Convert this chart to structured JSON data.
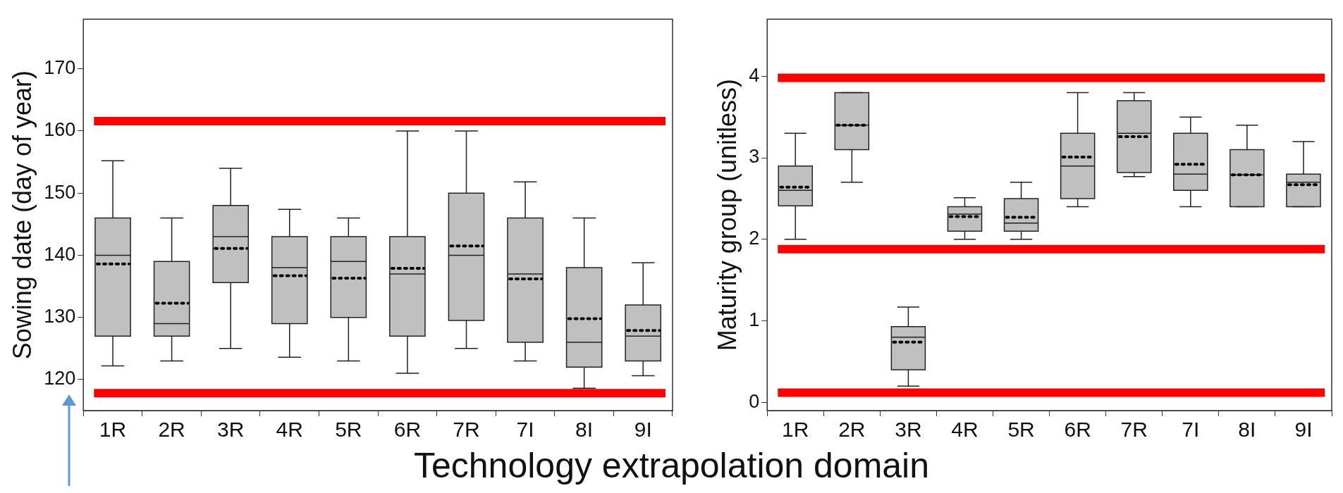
{
  "chart_data": [
    {
      "type": "box",
      "ylabel": "Sowing date (day of year)",
      "xlabel": "Technology extrapolation domain",
      "categories": [
        "1R",
        "2R",
        "3R",
        "4R",
        "5R",
        "6R",
        "7R",
        "7I",
        "8I",
        "9I"
      ],
      "color": "#c0c0c0",
      "ylim": [
        115,
        178
      ],
      "yticks": [
        120,
        130,
        140,
        150,
        160,
        170
      ],
      "boxes": [
        {
          "low": 122.2,
          "q1": 127,
          "median": 140,
          "q3": 146,
          "high": 155.2,
          "mean": 138.6
        },
        {
          "low": 123,
          "q1": 127,
          "median": 129,
          "q3": 139,
          "high": 146,
          "mean": 132.3
        },
        {
          "low": 125,
          "q1": 135.6,
          "median": 143,
          "q3": 148,
          "high": 154,
          "mean": 141.1
        },
        {
          "low": 123.6,
          "q1": 129,
          "median": 138,
          "q3": 143,
          "high": 147.4,
          "mean": 136.7
        },
        {
          "low": 123,
          "q1": 130,
          "median": 139,
          "q3": 143,
          "high": 146,
          "mean": 136.3
        },
        {
          "low": 121,
          "q1": 127,
          "median": 137,
          "q3": 143,
          "high": 160,
          "mean": 137.9
        },
        {
          "low": 125,
          "q1": 129.5,
          "median": 140,
          "q3": 150,
          "high": 160,
          "mean": 141.5
        },
        {
          "low": 123,
          "q1": 126,
          "median": 137,
          "q3": 146,
          "high": 151.8,
          "mean": 136.2
        },
        {
          "low": 118.6,
          "q1": 122,
          "median": 126,
          "q3": 138,
          "high": 146,
          "mean": 129.8
        },
        {
          "low": 120.6,
          "q1": 123,
          "median": 127,
          "q3": 132,
          "high": 138.8,
          "mean": 127.9
        }
      ],
      "ref_lines": [
        {
          "axis": "y",
          "value": 161.6,
          "color": "#ff0000"
        },
        {
          "axis": "y",
          "value": 117.8,
          "color": "#ff0000"
        }
      ]
    },
    {
      "type": "box",
      "ylabel": "Maturity group (unitless)",
      "categories": [
        "1R",
        "2R",
        "3R",
        "4R",
        "5R",
        "6R",
        "7R",
        "7I",
        "8I",
        "9I"
      ],
      "color": "#c0c0c0",
      "ylim": [
        -0.1,
        4.7
      ],
      "yticks": [
        0,
        1,
        2,
        3,
        4
      ],
      "boxes": [
        {
          "low": 2.0,
          "q1": 2.41,
          "median": 2.6,
          "q3": 2.9,
          "high": 3.3,
          "mean": 2.64
        },
        {
          "low": 2.7,
          "q1": 3.1,
          "median": 3.4,
          "q3": 3.8,
          "high": 3.8,
          "mean": 3.4
        },
        {
          "low": 0.2,
          "q1": 0.4,
          "median": 0.8,
          "q3": 0.93,
          "high": 1.17,
          "mean": 0.74
        },
        {
          "low": 2.0,
          "q1": 2.1,
          "median": 2.31,
          "q3": 2.4,
          "high": 2.51,
          "mean": 2.28
        },
        {
          "low": 2.0,
          "q1": 2.1,
          "median": 2.2,
          "q3": 2.5,
          "high": 2.7,
          "mean": 2.27
        },
        {
          "low": 2.4,
          "q1": 2.5,
          "median": 2.9,
          "q3": 3.3,
          "high": 3.8,
          "mean": 3.01
        },
        {
          "low": 2.77,
          "q1": 2.82,
          "median": 3.3,
          "q3": 3.7,
          "high": 3.8,
          "mean": 3.26
        },
        {
          "low": 2.4,
          "q1": 2.6,
          "median": 2.8,
          "q3": 3.3,
          "high": 3.5,
          "mean": 2.92
        },
        {
          "low": 2.4,
          "q1": 2.4,
          "median": 2.79,
          "q3": 3.1,
          "high": 3.4,
          "mean": 2.79
        },
        {
          "low": 2.4,
          "q1": 2.4,
          "median": 2.7,
          "q3": 2.8,
          "high": 3.2,
          "mean": 2.67
        }
      ],
      "ref_lines": [
        {
          "axis": "y",
          "value": 3.98,
          "color": "#ff0000"
        },
        {
          "axis": "y",
          "value": 1.88,
          "color": "#ff0000"
        },
        {
          "axis": "y",
          "value": 0.12,
          "color": "#ff0000"
        }
      ]
    }
  ]
}
